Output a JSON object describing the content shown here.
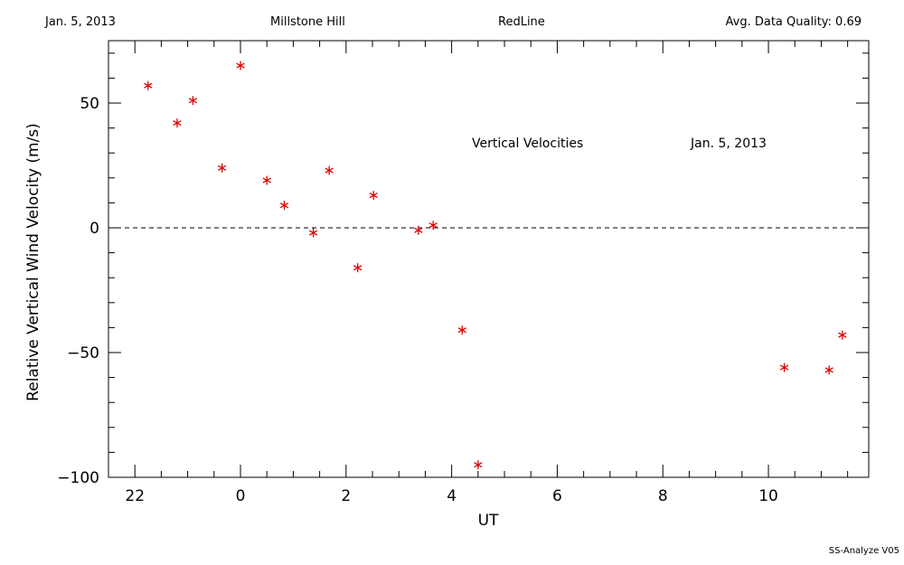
{
  "header": {
    "date": "Jan. 5, 2013",
    "site": "Millstone Hill",
    "line": "RedLine",
    "quality": "Avg. Data Quality: 0.69"
  },
  "footer": "SS-Analyze V05",
  "colors": {
    "marker": "#e00000",
    "axis": "#000000",
    "background": "#ffffff"
  },
  "chart_data": {
    "type": "scatter",
    "title": "",
    "annotations": [
      "Vertical Velocities",
      "Jan. 5, 2013"
    ],
    "xlabel": "UT",
    "ylabel": "Relative Vertical Wind Velocity (m/s)",
    "xlim": [
      21.5,
      11.9
    ],
    "x_wraps_at": 24,
    "ylim": [
      -100,
      75
    ],
    "xticks": [
      22,
      0,
      2,
      4,
      6,
      8,
      10
    ],
    "yticks": [
      50,
      0,
      -50,
      -100
    ],
    "ytick_labels": [
      "50",
      "0",
      "−50",
      "−100"
    ],
    "reference_line": {
      "y": 0,
      "style": "dashed"
    },
    "grid": false,
    "legend": "none",
    "marker": "asterisk",
    "points": [
      {
        "x": 22.25,
        "y": 57
      },
      {
        "x": 22.8,
        "y": 42
      },
      {
        "x": 23.1,
        "y": 51
      },
      {
        "x": 23.65,
        "y": 24
      },
      {
        "x": 0.0,
        "y": 65
      },
      {
        "x": 0.5,
        "y": 19
      },
      {
        "x": 0.83,
        "y": 9
      },
      {
        "x": 1.38,
        "y": -2
      },
      {
        "x": 1.68,
        "y": 23
      },
      {
        "x": 2.22,
        "y": -16
      },
      {
        "x": 2.52,
        "y": 13
      },
      {
        "x": 3.37,
        "y": -1
      },
      {
        "x": 3.65,
        "y": 1
      },
      {
        "x": 4.2,
        "y": -41
      },
      {
        "x": 4.5,
        "y": -95
      },
      {
        "x": 10.3,
        "y": -56
      },
      {
        "x": 11.15,
        "y": -57
      },
      {
        "x": 11.4,
        "y": -43
      }
    ]
  }
}
